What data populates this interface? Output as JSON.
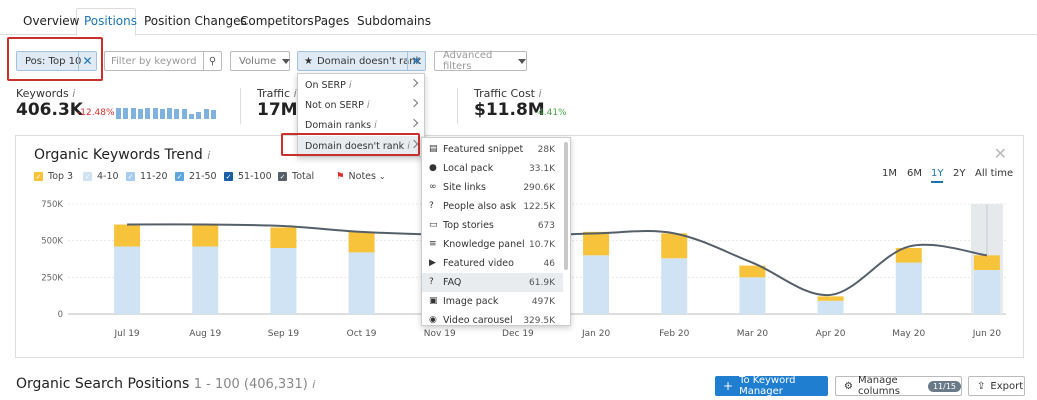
{
  "tabs": [
    {
      "label": "Overview"
    },
    {
      "label": "Positions"
    },
    {
      "label": "Position Changes"
    },
    {
      "label": "Competitors"
    },
    {
      "label": "Pages"
    },
    {
      "label": "Subdomains"
    }
  ],
  "filters": {
    "pos_chip": "Pos: Top 10",
    "keyword_placeholder": "Filter by keyword",
    "volume_label": "Volume",
    "domain_chip": "Domain doesn't rank",
    "advanced_label": "Advanced filters"
  },
  "stats": {
    "keywords": {
      "label": "Keywords",
      "info": "i",
      "value": "406.3K",
      "change": "-12.48%"
    },
    "traffic": {
      "label": "Traffic",
      "info": "i",
      "value": "17M"
    },
    "traffic_cost": {
      "label": "Traffic Cost",
      "info": "i",
      "value": "$11.8M",
      "change": "4.41%"
    }
  },
  "sparkline": [
    0.9,
    0.9,
    0.9,
    0.85,
    0.9,
    0.9,
    0.85,
    0.9,
    0.85,
    0.85,
    0.4,
    0.55,
    0.8,
    0.75
  ],
  "chart_panel": {
    "title": "Organic Keywords Trend",
    "info": "i",
    "legend": [
      {
        "label": "Top 3",
        "color": "#f7c33a"
      },
      {
        "label": "4-10",
        "color": "#cfe3f5"
      },
      {
        "label": "11-20",
        "color": "#a9cdee"
      },
      {
        "label": "21-50",
        "color": "#5fa6df"
      },
      {
        "label": "51-100",
        "color": "#1a5ea3"
      },
      {
        "label": "Total",
        "color": "#555f6a"
      }
    ],
    "notes_label": "Notes",
    "ranges": [
      "1M",
      "6M",
      "1Y",
      "2Y",
      "All time"
    ],
    "active_range": "1Y"
  },
  "chart_data": {
    "type": "bar",
    "categories": [
      "Jul 19",
      "Aug 19",
      "Sep 19",
      "Oct 19",
      "Nov 19",
      "Dec 19",
      "Jan 20",
      "Feb 20",
      "Mar 20",
      "Apr 20",
      "May 20",
      "Jun 20"
    ],
    "series": [
      {
        "name": "4-10",
        "values": [
          460000,
          460000,
          450000,
          420000,
          400000,
          400000,
          400000,
          380000,
          250000,
          90000,
          350000,
          300000
        ]
      },
      {
        "name": "Top 3",
        "values": [
          150000,
          150000,
          140000,
          140000,
          120000,
          120000,
          160000,
          170000,
          80000,
          30000,
          100000,
          100000
        ]
      },
      {
        "name": "Total",
        "values": [
          610000,
          610000,
          600000,
          560000,
          540000,
          530000,
          550000,
          550000,
          350000,
          130000,
          460000,
          400000
        ]
      }
    ],
    "yticks": [
      "750K",
      "500K",
      "250K",
      "0"
    ],
    "ylim": [
      0,
      750000
    ],
    "highlighted": "Jun 20"
  },
  "menu": {
    "items": [
      {
        "label": "On SERP",
        "info": "i"
      },
      {
        "label": "Not on SERP",
        "info": "i"
      },
      {
        "label": "Domain ranks",
        "info": "i"
      },
      {
        "label": "Domain doesn't rank",
        "info": "i"
      }
    ]
  },
  "submenu": {
    "items": [
      {
        "label": "Featured snippet",
        "count": "28K",
        "icon": "▤"
      },
      {
        "label": "Local pack",
        "count": "33.1K",
        "icon": "●"
      },
      {
        "label": "Site links",
        "count": "290.6K",
        "icon": "∞"
      },
      {
        "label": "People also ask",
        "count": "122.5K",
        "icon": "?"
      },
      {
        "label": "Top stories",
        "count": "673",
        "icon": "▭"
      },
      {
        "label": "Knowledge panel",
        "count": "10.7K",
        "icon": "≡"
      },
      {
        "label": "Featured video",
        "count": "46",
        "icon": "▶"
      },
      {
        "label": "FAQ",
        "count": "61.9K",
        "icon": "?"
      },
      {
        "label": "Image pack",
        "count": "497K",
        "icon": "▣"
      },
      {
        "label": "Video carousel",
        "count": "329.5K",
        "icon": "◉"
      }
    ],
    "highlighted": "FAQ"
  },
  "bottom": {
    "title": "Organic Search Positions",
    "range": "1 - 100 (406,331)",
    "info": "i",
    "keyword_manager": "To Keyword Manager",
    "manage_columns": "Manage columns",
    "columns_badge": "11/15",
    "export": "Export"
  },
  "colors": {
    "accent": "#1a74b3",
    "highlight_red": "#c9302c",
    "bar_light": "#cfe3f5",
    "bar_top": "#f7c33a"
  }
}
